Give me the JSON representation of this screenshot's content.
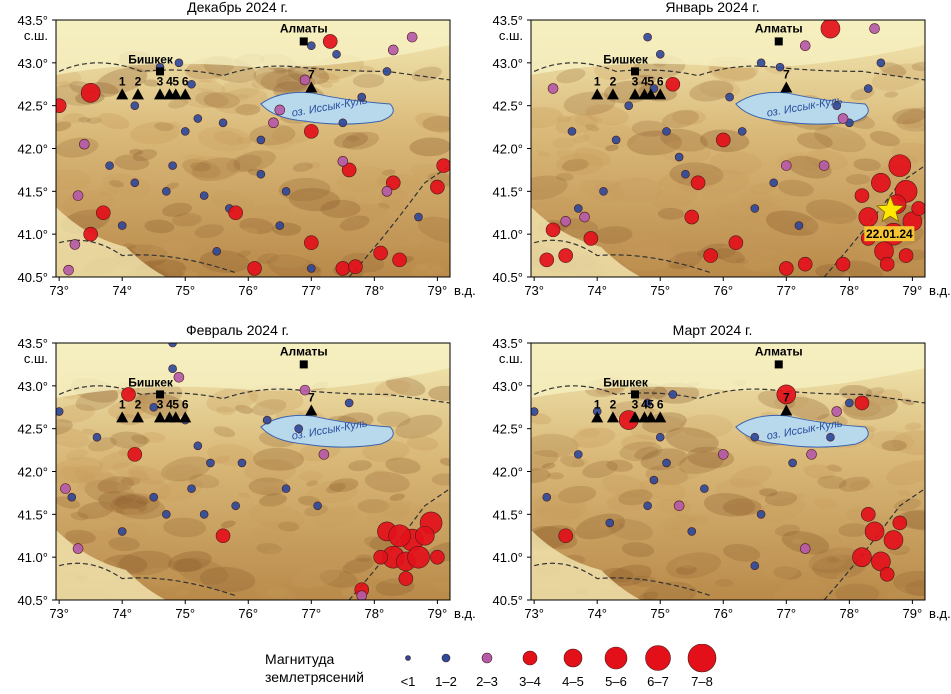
{
  "panels": [
    {
      "title": "Декабрь 2024 г."
    },
    {
      "title": "Январь 2024 г."
    },
    {
      "title": "Февраль 2024 г."
    },
    {
      "title": "Март 2024 г."
    }
  ],
  "map": {
    "lon_ticks": [
      "73°",
      "74°",
      "75°",
      "76°",
      "77°",
      "78°",
      "79°"
    ],
    "lon_suffix": "в.д.",
    "lat_ticks": [
      "40.5°",
      "41.0°",
      "41.5°",
      "42.0°",
      "42.5°",
      "43.0°",
      "43.5°"
    ],
    "lat_suffix": "с.ш.",
    "city_almaty": "Алматы",
    "city_bishkek": "Бишкек",
    "lake_label": "оз. Иссык-Куль",
    "station_labels": [
      "1",
      "2",
      "3",
      "4",
      "5",
      "6",
      "7"
    ],
    "event_label": "22.01.24"
  },
  "legend": {
    "title_line1": "Магнитуда",
    "title_line2": "землетрясений",
    "items": [
      "<1",
      "1–2",
      "2–3",
      "3–4",
      "4–5",
      "5–6",
      "6–7",
      "7–8"
    ]
  },
  "colors": {
    "mag_lt1": "#2e4a9a",
    "mag_1_2": "#2e4a9a",
    "mag_2_3": "#b45aa8",
    "mag_3_plus": "#e3101a",
    "star": "#ffe600",
    "lake": "#b8d8ec"
  }
}
